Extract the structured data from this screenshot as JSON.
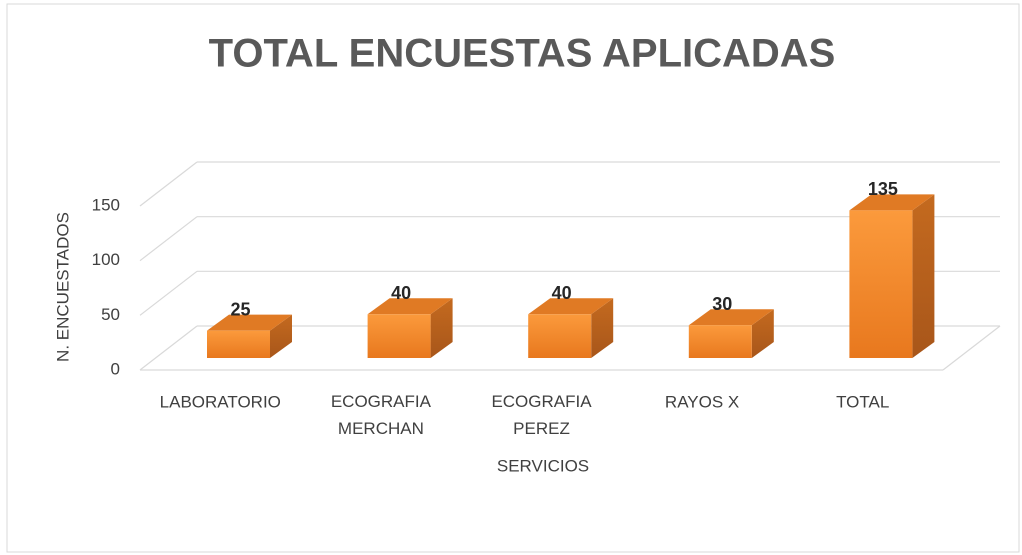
{
  "chart_data": {
    "type": "bar3d",
    "title": "TOTAL ENCUESTAS APLICADAS",
    "x_label": "SERVICIOS",
    "y_label": "N. ENCUESTADOS",
    "categories": [
      "LABORATORIO",
      "ECOGRAFIA MERCHAN",
      "ECOGRAFIA PEREZ",
      "RAYOS X",
      "TOTAL"
    ],
    "values": [
      25,
      40,
      40,
      30,
      135
    ],
    "color": "#f7922e",
    "ylim": [
      0,
      150
    ],
    "yticks": [
      0,
      50,
      100,
      150
    ],
    "grid": true
  }
}
